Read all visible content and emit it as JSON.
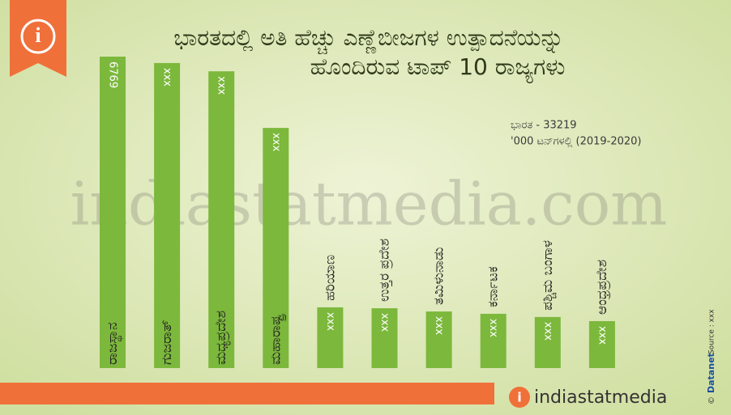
{
  "chart_data": {
    "type": "bar",
    "title": [
      "ಭಾರತದಲ್ಲಿ ಅತಿ ಹೆಚ್ಚು ಎಣ್ಣೆಬೀಜಗಳ ಉತ್ಪಾದನೆಯನ್ನು",
      "ಹೊಂದಿರುವ ಟಾಪ್ 10 ರಾಜ್ಯಗಳು"
    ],
    "note": [
      "ಭಾರತ - 33219",
      "'000 ಟನ್‌ಗಳಲ್ಲಿ (2019-2020)"
    ],
    "categories": [
      "ರಾಜಸ್ಥಾನ",
      "ಗುಜರಾತ್",
      "ಮಧ್ಯಪ್ರದೇಶ",
      "ಮಹಾರಾಷ್ಟ್ರ",
      "ಹರಿಯಾಣ",
      "ಉತ್ತರ ಪ್ರದೇಶ",
      "ತಮಿಳುನಾಡು",
      "ಕರ್ನಾಟಕ",
      "ಪಶ್ಚಿಮ ಬಂಗಾಳ",
      "ಆಂಧ್ರಪ್ರದೇಶ"
    ],
    "values": [
      6769,
      6630,
      6450,
      5220,
      1320,
      1300,
      1230,
      1180,
      1110,
      1020
    ],
    "value_labels": [
      "6769",
      "xxx",
      "xxx",
      "xxx",
      "xxx",
      "xxx",
      "xxx",
      "xxx",
      "xxx",
      "xxx"
    ],
    "color": "#7cb83c",
    "watermark": "indiastatmedia.com",
    "brand": "indiastatmedia",
    "copyright": "©",
    "datanet": "Datanet",
    "source": "Source : xxx"
  }
}
